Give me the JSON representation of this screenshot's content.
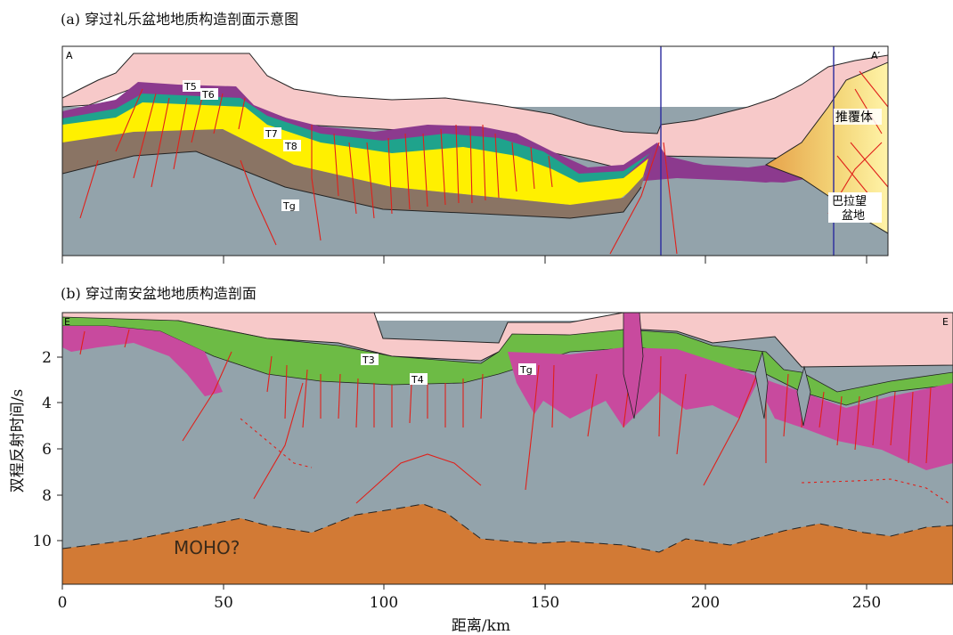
{
  "panel_a": {
    "caption": "(a) 穿过礼乐盆地地质构造剖面示意图",
    "corner_left": "A",
    "corner_right": "A′",
    "horizons": [
      "T5",
      "T6",
      "T7",
      "T8",
      "Tg"
    ],
    "annotations": {
      "thrust": "推覆体",
      "basin_line1": "巴拉望",
      "basin_line2": "盆地"
    }
  },
  "panel_b": {
    "caption": "(b) 穿过南安盆地地质构造剖面",
    "corner_left": "E",
    "corner_right": "E",
    "horizons": [
      "T3",
      "T4",
      "Tg"
    ],
    "moho_label": "MOHO?"
  },
  "axes": {
    "ylabel": "双程反射时间/s",
    "xlabel": "距离/km",
    "y_ticks": [
      "2",
      "4",
      "6",
      "8",
      "10"
    ],
    "x_ticks": [
      "0",
      "50",
      "100",
      "150",
      "200",
      "250"
    ]
  },
  "colors": {
    "water": "#f7c9c9",
    "basement": "#93a3ab",
    "purple": "#8c3a8e",
    "teal": "#1fa38c",
    "yellow": "#fff000",
    "brown": "#8a7464",
    "magenta": "#c84a9e",
    "green": "#6dbb45",
    "moho": "#d27a35",
    "fault": "#e0201a",
    "thrust": "#e8c56a"
  }
}
